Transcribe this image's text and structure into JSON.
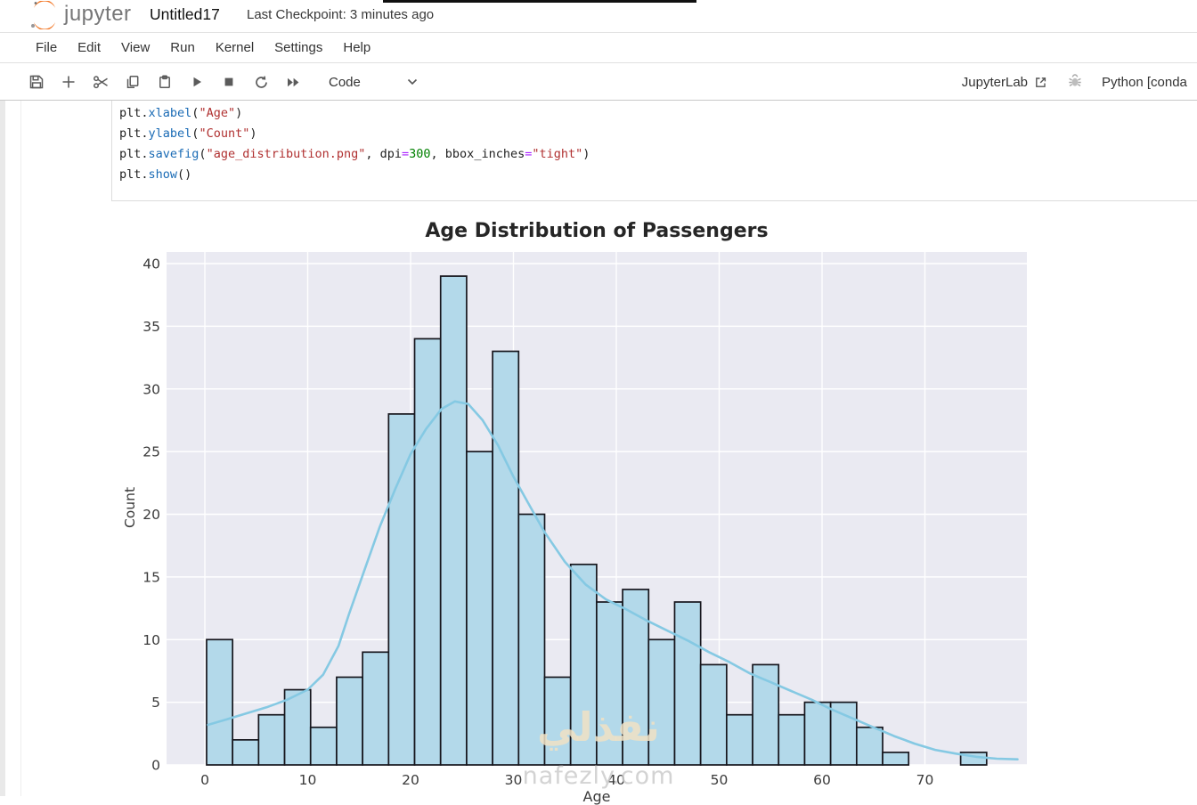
{
  "header": {
    "logo_text": "jupyter",
    "notebook_title": "Untitled17",
    "checkpoint": "Last Checkpoint: 3 minutes ago"
  },
  "menu": {
    "items": [
      {
        "label": "File"
      },
      {
        "label": "Edit"
      },
      {
        "label": "View"
      },
      {
        "label": "Run"
      },
      {
        "label": "Kernel"
      },
      {
        "label": "Settings"
      },
      {
        "label": "Help"
      }
    ]
  },
  "toolbar": {
    "icons": [
      "save",
      "insert-cell-below",
      "cut-cells",
      "copy-cells",
      "paste-cells",
      "run-cell",
      "interrupt-kernel",
      "restart-kernel",
      "restart-and-run-all"
    ],
    "cell_type": "Code",
    "jupyterlab_label": "JupyterLab",
    "kernel_label": "Python [conda"
  },
  "cell": {
    "lines": [
      [
        [
          "plt.",
          "p"
        ],
        [
          "xlabel",
          "f"
        ],
        [
          "(",
          "p"
        ],
        [
          "\"Age\"",
          "s"
        ],
        [
          ")",
          "p"
        ]
      ],
      [
        [
          "plt.",
          "p"
        ],
        [
          "ylabel",
          "f"
        ],
        [
          "(",
          "p"
        ],
        [
          "\"Count\"",
          "s"
        ],
        [
          ")",
          "p"
        ]
      ],
      [
        [
          "plt.",
          "p"
        ],
        [
          "savefig",
          "f"
        ],
        [
          "(",
          "p"
        ],
        [
          "\"age_distribution.png\"",
          "s"
        ],
        [
          ", dpi",
          "p"
        ],
        [
          "=",
          "o"
        ],
        [
          "300",
          "n"
        ],
        [
          ", bbox_inches",
          "p"
        ],
        [
          "=",
          "o"
        ],
        [
          "\"tight\"",
          "s"
        ],
        [
          ")",
          "p"
        ]
      ],
      [
        [
          "plt.",
          "p"
        ],
        [
          "show",
          "f"
        ],
        [
          "()",
          "p"
        ]
      ]
    ]
  },
  "watermark": {
    "arabic": "نفذلي",
    "latin": "nafezly.com"
  },
  "chart_data": {
    "type": "bar",
    "subtype": "histogram-with-kde",
    "title": "Age Distribution of Passengers",
    "xlabel": "Age",
    "ylabel": "Count",
    "bin_start": 0.17,
    "bin_width": 2.5277,
    "counts": [
      10,
      2,
      4,
      6,
      3,
      7,
      9,
      28,
      34,
      39,
      25,
      33,
      20,
      7,
      16,
      13,
      14,
      10,
      13,
      8,
      4,
      8,
      4,
      5,
      5,
      3,
      1,
      0,
      0,
      1
    ],
    "x_ticks": [
      0,
      10,
      20,
      30,
      40,
      50,
      60,
      70
    ],
    "y_ticks": [
      0,
      5,
      10,
      15,
      20,
      25,
      30,
      35,
      40
    ],
    "xlim": [
      -3.7,
      79.9
    ],
    "ylim": [
      0,
      40.9
    ],
    "grid": true,
    "legend": "none",
    "kde_points": [
      [
        0.3,
        3.2
      ],
      [
        2,
        3.6
      ],
      [
        4,
        4.1
      ],
      [
        6,
        4.6
      ],
      [
        8,
        5.2
      ],
      [
        10,
        6.0
      ],
      [
        11.5,
        7.2
      ],
      [
        13,
        9.5
      ],
      [
        14,
        12.0
      ],
      [
        15.5,
        15.5
      ],
      [
        17,
        19.0
      ],
      [
        18.5,
        22.0
      ],
      [
        20,
        24.8
      ],
      [
        21.5,
        26.8
      ],
      [
        23,
        28.4
      ],
      [
        24.3,
        29.0
      ],
      [
        25.6,
        28.8
      ],
      [
        27,
        27.5
      ],
      [
        28.5,
        25.5
      ],
      [
        30,
        23.0
      ],
      [
        31.5,
        20.8
      ],
      [
        33,
        18.6
      ],
      [
        35,
        16.2
      ],
      [
        37,
        14.4
      ],
      [
        39,
        13.2
      ],
      [
        41,
        12.4
      ],
      [
        43,
        11.5
      ],
      [
        45,
        10.7
      ],
      [
        47,
        9.9
      ],
      [
        49,
        9.0
      ],
      [
        51,
        8.2
      ],
      [
        53,
        7.3
      ],
      [
        55,
        6.6
      ],
      [
        57,
        5.9
      ],
      [
        59,
        5.2
      ],
      [
        61,
        4.4
      ],
      [
        63,
        3.7
      ],
      [
        65,
        3.0
      ],
      [
        67,
        2.3
      ],
      [
        69,
        1.7
      ],
      [
        71,
        1.2
      ],
      [
        73,
        0.9
      ],
      [
        75,
        0.65
      ],
      [
        77,
        0.5
      ],
      [
        79,
        0.45
      ]
    ],
    "colors": {
      "bar_fill": "#b3d9ea",
      "bar_edge": "#16161d",
      "kde_line": "#85c9e3",
      "plot_bg": "#eaeaf2",
      "grid_line": "#ffffff",
      "tick_text": "#3a3a3a"
    }
  }
}
